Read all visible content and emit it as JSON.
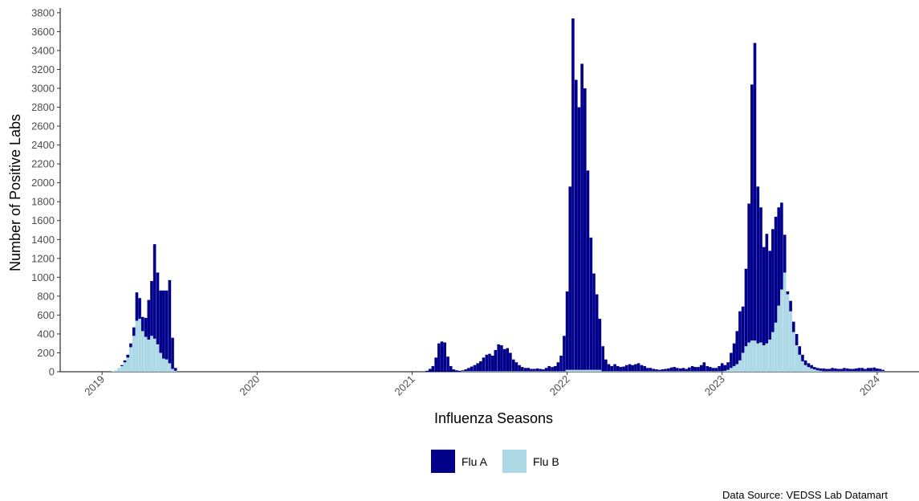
{
  "chart_data": {
    "type": "stacked_bar",
    "xlabel": "Influenza Seasons",
    "ylabel": "Number of Positive Labs",
    "caption": "Data Source: VEDSS Lab Datamart",
    "xlim": [
      2018.73,
      2024.27
    ],
    "xticks": [
      2019,
      2020,
      2021,
      2022,
      2023,
      2024
    ],
    "ylim": [
      0,
      3850
    ],
    "yticks": [
      0,
      200,
      400,
      600,
      800,
      1000,
      1200,
      1400,
      1600,
      1800,
      2000,
      2200,
      2400,
      2600,
      2800,
      3000,
      3200,
      3400,
      3600,
      3800
    ],
    "grid": false,
    "legend": "bottom",
    "x": [
      2019.07,
      2019.089,
      2019.108,
      2019.128,
      2019.147,
      2019.166,
      2019.185,
      2019.205,
      2019.224,
      2019.243,
      2019.262,
      2019.282,
      2019.301,
      2019.32,
      2019.339,
      2019.359,
      2019.378,
      2019.397,
      2019.416,
      2019.436,
      2019.455,
      2019.474,
      2021.096,
      2021.115,
      2021.134,
      2021.154,
      2021.173,
      2021.192,
      2021.211,
      2021.231,
      2021.25,
      2021.269,
      2021.288,
      2021.308,
      2021.327,
      2021.346,
      2021.365,
      2021.384,
      2021.404,
      2021.423,
      2021.442,
      2021.461,
      2021.481,
      2021.5,
      2021.519,
      2021.538,
      2021.558,
      2021.577,
      2021.596,
      2021.615,
      2021.634,
      2021.654,
      2021.673,
      2021.692,
      2021.711,
      2021.731,
      2021.75,
      2021.769,
      2021.788,
      2021.808,
      2021.827,
      2021.846,
      2021.865,
      2021.884,
      2021.904,
      2021.923,
      2021.942,
      2021.961,
      2021.981,
      2022.0,
      2022.019,
      2022.038,
      2022.058,
      2022.077,
      2022.096,
      2022.115,
      2022.134,
      2022.154,
      2022.173,
      2022.192,
      2022.211,
      2022.231,
      2022.25,
      2022.269,
      2022.288,
      2022.308,
      2022.327,
      2022.346,
      2022.365,
      2022.384,
      2022.404,
      2022.423,
      2022.442,
      2022.461,
      2022.481,
      2022.5,
      2022.519,
      2022.538,
      2022.558,
      2022.577,
      2022.596,
      2022.615,
      2022.634,
      2022.654,
      2022.673,
      2022.692,
      2022.711,
      2022.731,
      2022.75,
      2022.769,
      2022.788,
      2022.808,
      2022.827,
      2022.846,
      2022.865,
      2022.884,
      2022.904,
      2022.923,
      2022.942,
      2022.961,
      2022.981,
      2023.0,
      2023.019,
      2023.038,
      2023.058,
      2023.077,
      2023.096,
      2023.115,
      2023.134,
      2023.154,
      2023.173,
      2023.192,
      2023.211,
      2023.231,
      2023.25,
      2023.269,
      2023.288,
      2023.308,
      2023.327,
      2023.346,
      2023.365,
      2023.384,
      2023.404,
      2023.423,
      2023.442,
      2023.461,
      2023.481,
      2023.5,
      2023.519,
      2023.538,
      2023.558,
      2023.577,
      2023.596,
      2023.615,
      2023.634,
      2023.654,
      2023.673,
      2023.692,
      2023.711,
      2023.731,
      2023.75,
      2023.769,
      2023.788,
      2023.808,
      2023.827,
      2023.846,
      2023.865,
      2023.884,
      2023.904,
      2023.923,
      2023.942,
      2023.961,
      2023.981,
      2024.0,
      2024.019,
      2024.038
    ],
    "series": [
      {
        "name": "Flu A",
        "color": "#00008b",
        "values": [
          0,
          0,
          0,
          10,
          20,
          30,
          40,
          90,
          300,
          220,
          150,
          200,
          420,
          580,
          1000,
          760,
          660,
          720,
          730,
          880,
          330,
          30,
          10,
          30,
          60,
          150,
          300,
          320,
          310,
          160,
          60,
          25,
          15,
          10,
          10,
          20,
          35,
          50,
          65,
          85,
          105,
          145,
          175,
          185,
          165,
          225,
          285,
          275,
          235,
          245,
          195,
          125,
          95,
          65,
          45,
          35,
          35,
          25,
          25,
          30,
          25,
          20,
          35,
          55,
          45,
          55,
          95,
          165,
          375,
          830,
          1940,
          3720,
          3070,
          2780,
          3240,
          2980,
          2110,
          1400,
          1020,
          800,
          540,
          265,
          125,
          75,
          55,
          75,
          55,
          45,
          50,
          65,
          75,
          65,
          75,
          85,
          65,
          55,
          35,
          35,
          25,
          20,
          15,
          20,
          25,
          30,
          40,
          45,
          35,
          30,
          35,
          25,
          40,
          55,
          45,
          45,
          65,
          95,
          55,
          45,
          35,
          35,
          55,
          85,
          60,
          80,
          160,
          240,
          350,
          520,
          490,
          820,
          1470,
          2710,
          3150,
          1660,
          1430,
          1040,
          1160,
          940,
          1090,
          1120,
          1040,
          920,
          400,
          30,
          110,
          110,
          120,
          90,
          70,
          50,
          40,
          35,
          25,
          25,
          25,
          30,
          25,
          25,
          35,
          30,
          25,
          25,
          35,
          30,
          25,
          25,
          30,
          35,
          35,
          25,
          35,
          35,
          40,
          30,
          25,
          15
        ]
      },
      {
        "name": "Flu B",
        "color": "#add8e6",
        "values": [
          5,
          15,
          40,
          60,
          100,
          150,
          260,
          380,
          540,
          560,
          430,
          370,
          340,
          380,
          350,
          290,
          200,
          140,
          130,
          90,
          30,
          10,
          0,
          0,
          0,
          0,
          0,
          0,
          0,
          0,
          0,
          0,
          0,
          0,
          5,
          5,
          5,
          5,
          5,
          5,
          5,
          5,
          5,
          5,
          5,
          5,
          5,
          5,
          5,
          5,
          5,
          5,
          5,
          5,
          5,
          5,
          5,
          5,
          5,
          5,
          5,
          5,
          5,
          5,
          5,
          5,
          5,
          5,
          5,
          20,
          20,
          20,
          20,
          20,
          20,
          20,
          20,
          20,
          20,
          20,
          20,
          5,
          5,
          5,
          5,
          5,
          5,
          5,
          5,
          5,
          5,
          5,
          5,
          5,
          5,
          5,
          5,
          5,
          5,
          5,
          5,
          5,
          5,
          5,
          5,
          5,
          5,
          5,
          5,
          5,
          5,
          5,
          5,
          5,
          5,
          5,
          5,
          5,
          5,
          5,
          5,
          5,
          10,
          20,
          40,
          60,
          80,
          120,
          200,
          270,
          310,
          330,
          330,
          300,
          310,
          280,
          300,
          340,
          420,
          520,
          700,
          870,
          1050,
          820,
          640,
          420,
          280,
          180,
          110,
          70,
          50,
          35,
          25,
          15,
          10,
          5,
          5,
          5,
          5,
          5,
          5,
          5,
          5,
          5,
          5,
          5,
          5,
          5,
          5,
          5,
          5,
          5,
          5,
          5,
          5,
          5
        ]
      }
    ]
  }
}
